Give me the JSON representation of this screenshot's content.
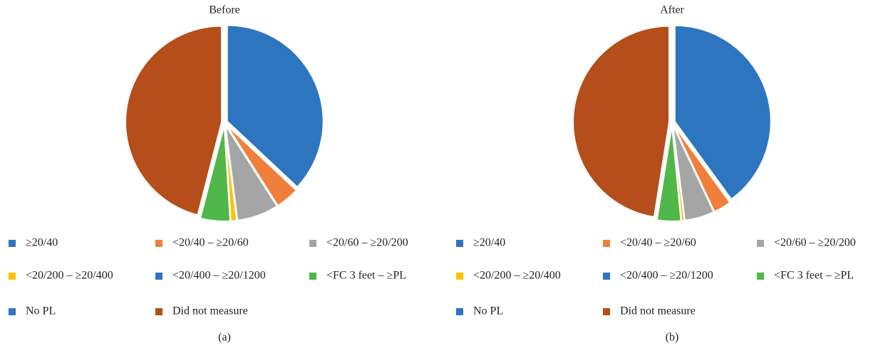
{
  "chart_data": [
    {
      "type": "pie",
      "title": "Before",
      "caption": "(a)",
      "categories": [
        "≥20/40",
        "<20/40 – ≥20/60",
        "<20/60 – ≥20/200",
        "<20/200 – ≥20/400",
        "<20/400 – ≥20/1200",
        "<FC 3 feet – ≥PL",
        "No PL",
        "Did not measure"
      ],
      "values": [
        37,
        4,
        7,
        1,
        0,
        5,
        0,
        46
      ],
      "colors": [
        "#2e75c0",
        "#f07f3c",
        "#a5a5a5",
        "#ffc000",
        "#2e75c0",
        "#4fb848",
        "#2e75c0",
        "#b54e1a"
      ]
    },
    {
      "type": "pie",
      "title": "After",
      "caption": "(b)",
      "categories": [
        "≥20/40",
        "<20/40 – ≥20/60",
        "<20/60 – ≥20/200",
        "<20/200 – ≥20/400",
        "<20/400 – ≥20/1200",
        "<FC 3 feet – ≥PL",
        "No PL",
        "Did not measure"
      ],
      "values": [
        40,
        3,
        5,
        0.5,
        0,
        4,
        0,
        47.5
      ],
      "colors": [
        "#2e75c0",
        "#f07f3c",
        "#a5a5a5",
        "#ffc000",
        "#2e75c0",
        "#4fb848",
        "#2e75c0",
        "#b54e1a"
      ]
    }
  ]
}
